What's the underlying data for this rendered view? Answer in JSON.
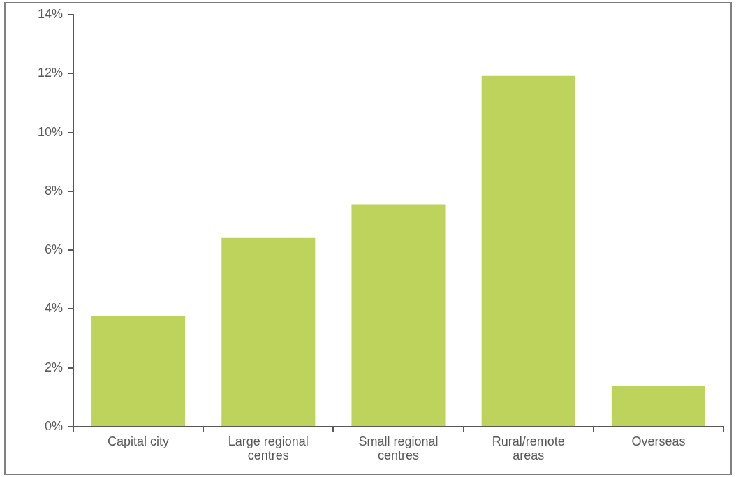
{
  "chart_data": {
    "type": "bar",
    "categories": [
      "Capital city",
      "Large regional centres",
      "Small regional centres",
      "Rural/remote areas",
      "Overseas"
    ],
    "values": [
      3.77,
      6.41,
      7.56,
      11.92,
      1.4
    ],
    "color": "#bed35b",
    "ylim": [
      0,
      14
    ],
    "yticks": [
      {
        "value": 0,
        "label": "0%"
      },
      {
        "value": 2,
        "label": "2%"
      },
      {
        "value": 4,
        "label": "4%"
      },
      {
        "value": 6,
        "label": "6%"
      },
      {
        "value": 8,
        "label": "8%"
      },
      {
        "value": 10,
        "label": "10%"
      },
      {
        "value": 12,
        "label": "12%"
      },
      {
        "value": 14,
        "label": "14%"
      }
    ],
    "grid": false,
    "legend": false
  }
}
